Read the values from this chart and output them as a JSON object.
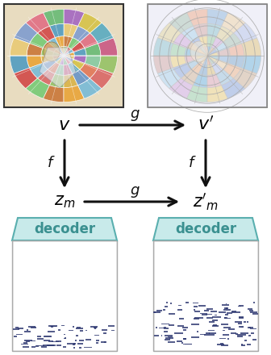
{
  "fig_width": 3.36,
  "fig_height": 4.4,
  "dpi": 100,
  "bg_color": "#ffffff",
  "decoder_fill": "#c8eaea",
  "decoder_stroke": "#5aafaf",
  "decoder_text_color": "#3a9090",
  "piano_roll_bg": "#ffffff",
  "piano_roll_stroke": "#aaaaaa",
  "arrow_color": "#111111",
  "label_color": "#111111",
  "v_label": "$\\mathit{v}$",
  "vprime_label": "$\\mathit{v}'$",
  "f_label_left": "$\\mathit{f}$",
  "f_label_right": "$\\mathit{f}$",
  "g_label_top": "$\\mathit{g}$",
  "zm_label": "$z_m$",
  "zprime_label": "$z'_m$",
  "g_label_bottom": "$\\mathit{g}$",
  "decoder_label": "decoder",
  "label_fontsize": 14,
  "decoder_fontsize": 12,
  "note_color": "#2c3670"
}
